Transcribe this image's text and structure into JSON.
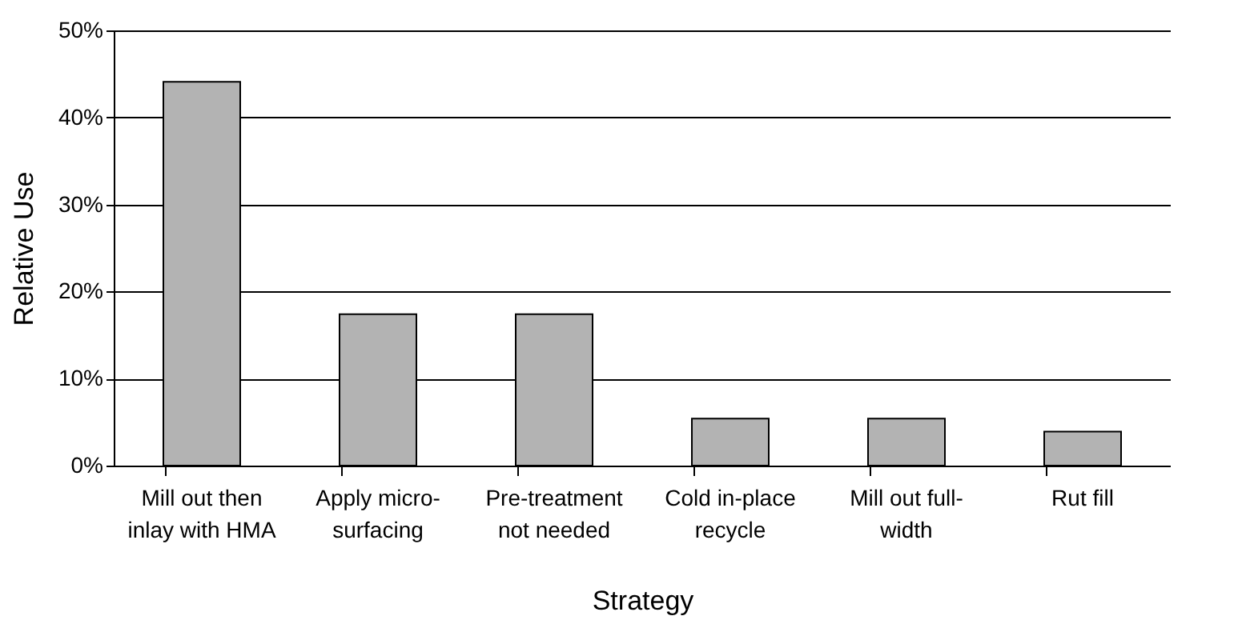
{
  "chart_data": {
    "type": "bar",
    "categories": [
      "Mill out then inlay with HMA",
      "Apply micro-surfacing",
      "Pre-treatment not needed",
      "Cold in-place recycle",
      "Mill out full-width",
      "Rut fill"
    ],
    "values": [
      44.1,
      17.4,
      17.4,
      5.4,
      5.4,
      3.9
    ],
    "color": "#b3b3b3",
    "xlabel": "Strategy",
    "ylabel": "Relative Use",
    "ylim": [
      0,
      50
    ],
    "yticks": [
      {
        "value": 0,
        "label": "0%"
      },
      {
        "value": 10,
        "label": "10%"
      },
      {
        "value": 20,
        "label": "20%"
      },
      {
        "value": 30,
        "label": "30%"
      },
      {
        "value": 40,
        "label": "40%"
      },
      {
        "value": 50,
        "label": "50%"
      }
    ],
    "grid": "y"
  }
}
